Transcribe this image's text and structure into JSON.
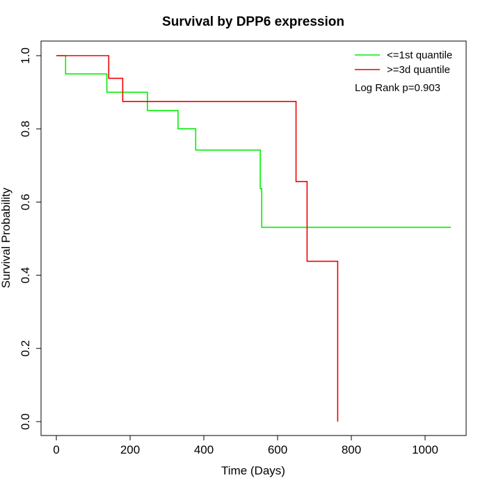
{
  "chart_data": {
    "type": "line",
    "title": "Survival by DPP6 expression",
    "xlabel": "Time (Days)",
    "ylabel": "Survival Probability",
    "xlim": [
      0,
      1080
    ],
    "ylim": [
      0,
      1.0
    ],
    "xticks": [
      0,
      200,
      400,
      600,
      800,
      1000
    ],
    "yticks": [
      0.0,
      0.2,
      0.4,
      0.6,
      0.8,
      1.0
    ],
    "xtick_labels": [
      "0",
      "200",
      "400",
      "600",
      "800",
      "1000"
    ],
    "ytick_labels": [
      "0.0",
      "0.2",
      "0.4",
      "0.6",
      "0.8",
      "1.0"
    ],
    "legend_position": "top-right",
    "annotation": "Log Rank p=0.903",
    "series": [
      {
        "name": "<=1st quantile",
        "color": "#00ee00",
        "step": true,
        "x": [
          0,
          25,
          25,
          137,
          137,
          247,
          247,
          330,
          330,
          378,
          378,
          553,
          553,
          557,
          557,
          1070
        ],
        "y": [
          1.0,
          1.0,
          0.95,
          0.95,
          0.9,
          0.9,
          0.85,
          0.85,
          0.8,
          0.8,
          0.742,
          0.742,
          0.637,
          0.637,
          0.531,
          0.531
        ]
      },
      {
        "name": ">=3d quantile",
        "color": "#ee0000",
        "step": true,
        "x": [
          0,
          142,
          142,
          180,
          180,
          650,
          650,
          680,
          680,
          763,
          763
        ],
        "y": [
          1.0,
          1.0,
          0.938,
          0.938,
          0.875,
          0.875,
          0.656,
          0.656,
          0.438,
          0.438,
          0.0
        ]
      }
    ]
  }
}
